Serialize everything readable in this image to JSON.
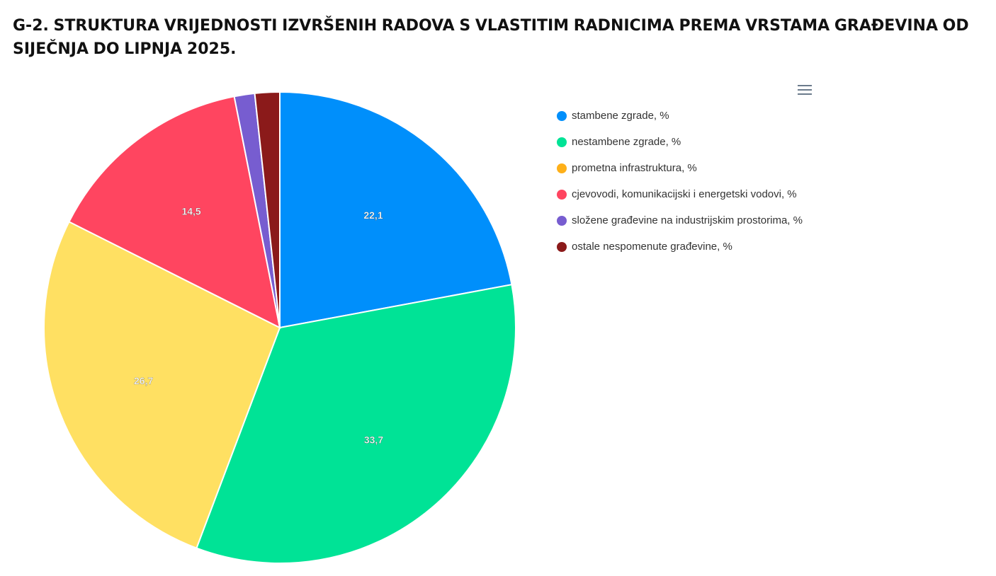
{
  "title": "G-2. STRUKTURA VRIJEDNOSTI IZVRŠENIH RADOVA S VLASTITIM RADNICIMA PREMA VRSTAMA GRAĐEVINA OD SIJEČNJA DO LIPNJA 2025.",
  "menu_icon": "hamburger-menu-icon",
  "chart_data": {
    "type": "pie",
    "title": "G-2. STRUKTURA VRIJEDNOSTI IZVRŠENIH RADOVA S VLASTITIM RADNICIMA PREMA VRSTAMA GRAĐEVINA OD SIJEČNJA DO LIPNJA 2025.",
    "legend_position": "right",
    "slices": [
      {
        "label": "stambene zgrade, %",
        "value": 22.1,
        "display": "22,1",
        "color": "#008ffb",
        "legend_color": "#008ffb",
        "show_label": true
      },
      {
        "label": "nestambene zgrade, %",
        "value": 33.7,
        "display": "33,7",
        "color": "#00e396",
        "legend_color": "#00e396",
        "show_label": true
      },
      {
        "label": "prometna infrastruktura, %",
        "value": 26.7,
        "display": "26,7",
        "color": "#ffe062",
        "legend_color": "#feb019",
        "show_label": true
      },
      {
        "label": "cjevovodi, komunikacijski i energetski vodovi, %",
        "value": 14.5,
        "display": "14,5",
        "color": "#ff4560",
        "legend_color": "#ff4560",
        "show_label": true
      },
      {
        "label": "složene građevine na industrijskim prostorima, %",
        "value": 1.4,
        "display": "1,4",
        "color": "#775dd0",
        "legend_color": "#775dd0",
        "show_label": false
      },
      {
        "label": "ostale nespomenute građevine, %",
        "value": 1.7,
        "display": "1,7",
        "color": "#8b1a1a",
        "legend_color": "#8b1a1a",
        "show_label": false
      }
    ]
  }
}
